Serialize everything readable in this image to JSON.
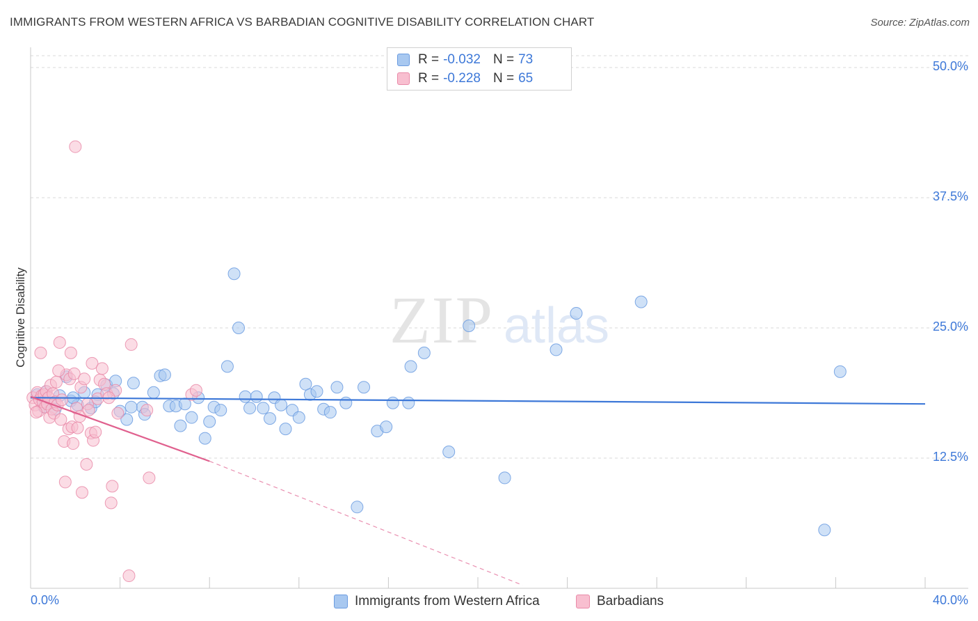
{
  "title": "IMMIGRANTS FROM WESTERN AFRICA VS BARBADIAN COGNITIVE DISABILITY CORRELATION CHART",
  "source": "Source: ZipAtlas.com",
  "watermark": {
    "zip": "ZIP",
    "atlas": "atlas"
  },
  "legend": {
    "r_label": "R =",
    "n_label": "N =",
    "rows": [
      {
        "r": "-0.032",
        "n": "73",
        "color": "#a8c8f0",
        "stroke": "#6a9be0"
      },
      {
        "r": "-0.228",
        "n": "65",
        "color": "#f8bfd0",
        "stroke": "#e98aa8"
      }
    ]
  },
  "bottom_legend": [
    {
      "name": "Immigrants from Western Africa",
      "color": "#a8c8f0",
      "stroke": "#6a9be0"
    },
    {
      "name": "Barbadians",
      "color": "#f8bfd0",
      "stroke": "#e98aa8"
    }
  ],
  "colors": {
    "blue": "#3d78d8",
    "pink": "#e0608e",
    "grid": "#d8d8d8"
  },
  "chart_data": {
    "type": "scatter",
    "title": "IMMIGRANTS FROM WESTERN AFRICA VS BARBADIAN COGNITIVE DISABILITY CORRELATION CHART",
    "xlabel": "",
    "ylabel": "Cognitive Disability",
    "xlim": [
      0,
      40
    ],
    "ylim": [
      0,
      50
    ],
    "x_ticks": [
      "0.0%",
      "40.0%"
    ],
    "y_ticks": [
      {
        "value": 12.5,
        "label": "12.5%"
      },
      {
        "value": 25.0,
        "label": "25.0%"
      },
      {
        "value": 37.5,
        "label": "37.5%"
      },
      {
        "value": 50.0,
        "label": "50.0%"
      }
    ],
    "grid": "horizontal dashed",
    "legend_position": "top-center",
    "series": [
      {
        "name": "Immigrants from Western Africa",
        "color": "#a8c8f0",
        "trend": {
          "x": [
            0,
            40
          ],
          "y": [
            18.3,
            17.7
          ],
          "color": "#3d78d8"
        },
        "points": [
          [
            0.3,
            18.6
          ],
          [
            0.5,
            18.2
          ],
          [
            0.7,
            18.9
          ],
          [
            0.9,
            17.8
          ],
          [
            1.1,
            17.2
          ],
          [
            1.3,
            18.5
          ],
          [
            1.6,
            20.3
          ],
          [
            1.8,
            18.0
          ],
          [
            2.1,
            17.6
          ],
          [
            2.4,
            18.8
          ],
          [
            2.7,
            17.3
          ],
          [
            3.0,
            18.6
          ],
          [
            3.4,
            19.5
          ],
          [
            3.7,
            18.7
          ],
          [
            3.8,
            19.9
          ],
          [
            4.0,
            17.0
          ],
          [
            4.3,
            16.2
          ],
          [
            4.6,
            19.7
          ],
          [
            5.0,
            17.4
          ],
          [
            5.1,
            16.7
          ],
          [
            5.5,
            18.8
          ],
          [
            5.8,
            20.4
          ],
          [
            6.0,
            20.5
          ],
          [
            6.2,
            17.5
          ],
          [
            6.5,
            17.5
          ],
          [
            6.7,
            15.6
          ],
          [
            6.9,
            17.7
          ],
          [
            7.2,
            16.4
          ],
          [
            7.5,
            18.3
          ],
          [
            7.8,
            14.4
          ],
          [
            8.0,
            16.0
          ],
          [
            8.2,
            17.4
          ],
          [
            8.5,
            17.1
          ],
          [
            8.8,
            21.3
          ],
          [
            9.1,
            30.2
          ],
          [
            9.3,
            25.0
          ],
          [
            9.6,
            18.4
          ],
          [
            9.8,
            17.3
          ],
          [
            10.1,
            18.4
          ],
          [
            10.4,
            17.3
          ],
          [
            10.7,
            16.3
          ],
          [
            10.9,
            18.3
          ],
          [
            11.2,
            17.6
          ],
          [
            11.4,
            15.3
          ],
          [
            11.7,
            17.1
          ],
          [
            12.0,
            16.4
          ],
          [
            12.3,
            19.6
          ],
          [
            12.5,
            18.6
          ],
          [
            12.8,
            18.9
          ],
          [
            13.1,
            17.2
          ],
          [
            13.4,
            16.9
          ],
          [
            13.7,
            19.3
          ],
          [
            14.1,
            17.8
          ],
          [
            14.6,
            7.8
          ],
          [
            14.9,
            19.3
          ],
          [
            15.5,
            15.1
          ],
          [
            15.9,
            15.5
          ],
          [
            16.2,
            17.8
          ],
          [
            16.9,
            17.8
          ],
          [
            17.0,
            21.3
          ],
          [
            17.6,
            22.6
          ],
          [
            18.7,
            13.1
          ],
          [
            19.6,
            25.2
          ],
          [
            21.2,
            10.6
          ],
          [
            23.5,
            22.9
          ],
          [
            24.4,
            26.4
          ],
          [
            27.3,
            27.5
          ],
          [
            35.5,
            5.6
          ],
          [
            36.2,
            20.8
          ],
          [
            1.9,
            18.3
          ],
          [
            0.6,
            17.4
          ],
          [
            2.9,
            17.9
          ],
          [
            4.5,
            17.4
          ]
        ]
      },
      {
        "name": "Barbadians",
        "color": "#f8bfd0",
        "trend": {
          "x": [
            0,
            8.0
          ],
          "y": [
            18.4,
            12.2
          ],
          "color": "#e0608e"
        },
        "trend_extension": {
          "x": [
            8.0,
            22.0
          ],
          "y": [
            12.2,
            0.3
          ]
        },
        "points": [
          [
            0.1,
            18.3
          ],
          [
            0.2,
            17.6
          ],
          [
            0.3,
            18.8
          ],
          [
            0.35,
            17.0
          ],
          [
            0.4,
            18.1
          ],
          [
            0.5,
            18.5
          ],
          [
            0.55,
            17.9
          ],
          [
            0.6,
            18.6
          ],
          [
            0.65,
            17.4
          ],
          [
            0.7,
            18.9
          ],
          [
            0.75,
            17.7
          ],
          [
            0.8,
            18.3
          ],
          [
            0.85,
            16.4
          ],
          [
            0.9,
            19.5
          ],
          [
            0.95,
            17.2
          ],
          [
            1.0,
            18.7
          ],
          [
            1.05,
            16.8
          ],
          [
            1.1,
            17.9
          ],
          [
            1.15,
            19.8
          ],
          [
            1.2,
            17.6
          ],
          [
            1.3,
            23.6
          ],
          [
            1.35,
            16.2
          ],
          [
            1.4,
            18.1
          ],
          [
            1.5,
            14.1
          ],
          [
            1.55,
            10.2
          ],
          [
            1.6,
            20.5
          ],
          [
            1.7,
            15.3
          ],
          [
            1.75,
            20.1
          ],
          [
            1.8,
            22.6
          ],
          [
            1.85,
            15.5
          ],
          [
            1.9,
            13.9
          ],
          [
            1.95,
            20.6
          ],
          [
            2.0,
            42.4
          ],
          [
            2.05,
            17.3
          ],
          [
            2.1,
            15.4
          ],
          [
            2.2,
            16.5
          ],
          [
            2.25,
            19.3
          ],
          [
            2.3,
            9.2
          ],
          [
            2.4,
            20.1
          ],
          [
            2.5,
            11.9
          ],
          [
            2.55,
            17.7
          ],
          [
            2.6,
            17.1
          ],
          [
            2.7,
            14.9
          ],
          [
            2.75,
            21.6
          ],
          [
            2.8,
            14.2
          ],
          [
            2.9,
            15.0
          ],
          [
            3.0,
            18.2
          ],
          [
            3.1,
            20.0
          ],
          [
            3.2,
            21.1
          ],
          [
            3.3,
            19.6
          ],
          [
            3.4,
            18.7
          ],
          [
            3.6,
            8.2
          ],
          [
            3.65,
            9.8
          ],
          [
            3.8,
            19.0
          ],
          [
            3.9,
            16.8
          ],
          [
            4.5,
            23.4
          ],
          [
            4.4,
            1.2
          ],
          [
            5.2,
            17.1
          ],
          [
            5.3,
            10.6
          ],
          [
            7.2,
            18.6
          ],
          [
            7.4,
            19.0
          ],
          [
            0.45,
            22.6
          ],
          [
            0.25,
            16.9
          ],
          [
            1.25,
            20.9
          ],
          [
            3.5,
            18.3
          ]
        ]
      }
    ]
  }
}
